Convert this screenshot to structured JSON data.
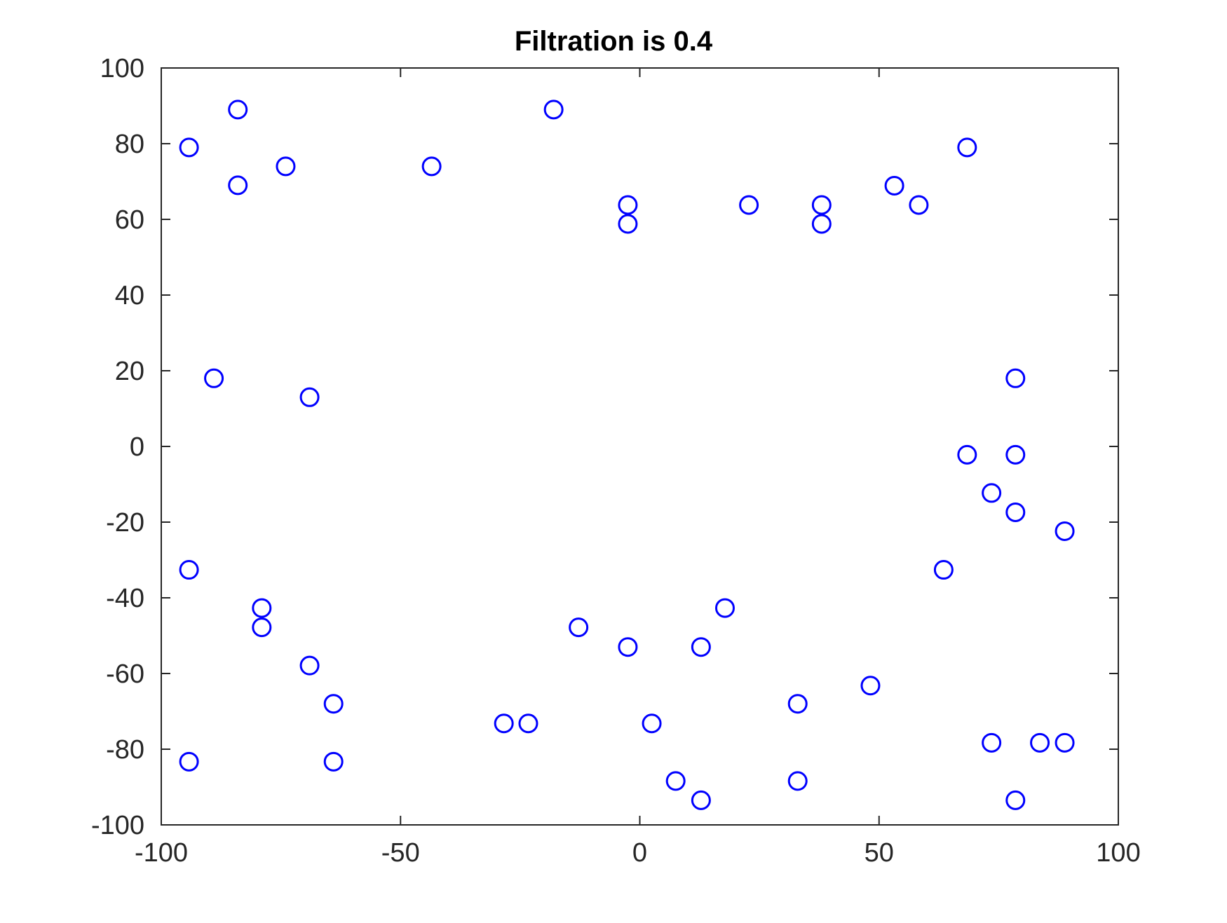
{
  "chart_data": {
    "type": "scatter",
    "title": "Filtration is 0.4",
    "xlabel": "",
    "ylabel": "",
    "xlim": [
      -100,
      100
    ],
    "ylim": [
      -100,
      100
    ],
    "xticks": [
      -100,
      -50,
      0,
      50,
      100
    ],
    "yticks": [
      100,
      80,
      60,
      40,
      20,
      0,
      -20,
      -40,
      -60,
      -80,
      -100
    ],
    "xtick_labels": [
      "-100",
      "-50",
      "0",
      "50",
      "100"
    ],
    "ytick_labels": [
      "100",
      "80",
      "60",
      "40",
      "20",
      "0",
      "-20",
      "-40",
      "-60",
      "-80",
      "-100"
    ],
    "grid": false,
    "marker": "circle-open",
    "colors": {
      "marker": "#0000ff",
      "axes": "#262626",
      "title": "#000000",
      "background": "#ffffff"
    },
    "points": [
      [
        -94.2,
        79
      ],
      [
        -84,
        89
      ],
      [
        -84,
        69
      ],
      [
        -74,
        74
      ],
      [
        -43.5,
        74
      ],
      [
        -18,
        89
      ],
      [
        -2.5,
        63.8
      ],
      [
        -2.5,
        58.8
      ],
      [
        22.8,
        63.8
      ],
      [
        38,
        63.8
      ],
      [
        38,
        58.8
      ],
      [
        53.2,
        68.9
      ],
      [
        58.3,
        63.8
      ],
      [
        68.4,
        79
      ],
      [
        -89,
        18
      ],
      [
        -69,
        13
      ],
      [
        78.5,
        18
      ],
      [
        68.4,
        -2.2
      ],
      [
        78.5,
        -2.2
      ],
      [
        73.5,
        -12.3
      ],
      [
        78.5,
        -17.4
      ],
      [
        88.8,
        -22.4
      ],
      [
        63.5,
        -32.6
      ],
      [
        -94.2,
        -32.6
      ],
      [
        -79,
        -42.7
      ],
      [
        -79,
        -47.8
      ],
      [
        -69,
        -57.9
      ],
      [
        -64,
        -68
      ],
      [
        -64,
        -83.3
      ],
      [
        -94.2,
        -83.3
      ],
      [
        -28.4,
        -73.2
      ],
      [
        -23.3,
        -73.2
      ],
      [
        -12.8,
        -47.8
      ],
      [
        -2.5,
        -53
      ],
      [
        12.8,
        -53
      ],
      [
        17.8,
        -42.7
      ],
      [
        2.5,
        -73.2
      ],
      [
        7.5,
        -88.4
      ],
      [
        12.8,
        -93.5
      ],
      [
        33,
        -68
      ],
      [
        33,
        -88.4
      ],
      [
        48.2,
        -63.2
      ],
      [
        73.5,
        -78.3
      ],
      [
        83.6,
        -78.3
      ],
      [
        88.8,
        -78.3
      ],
      [
        78.5,
        -93.5
      ]
    ]
  }
}
